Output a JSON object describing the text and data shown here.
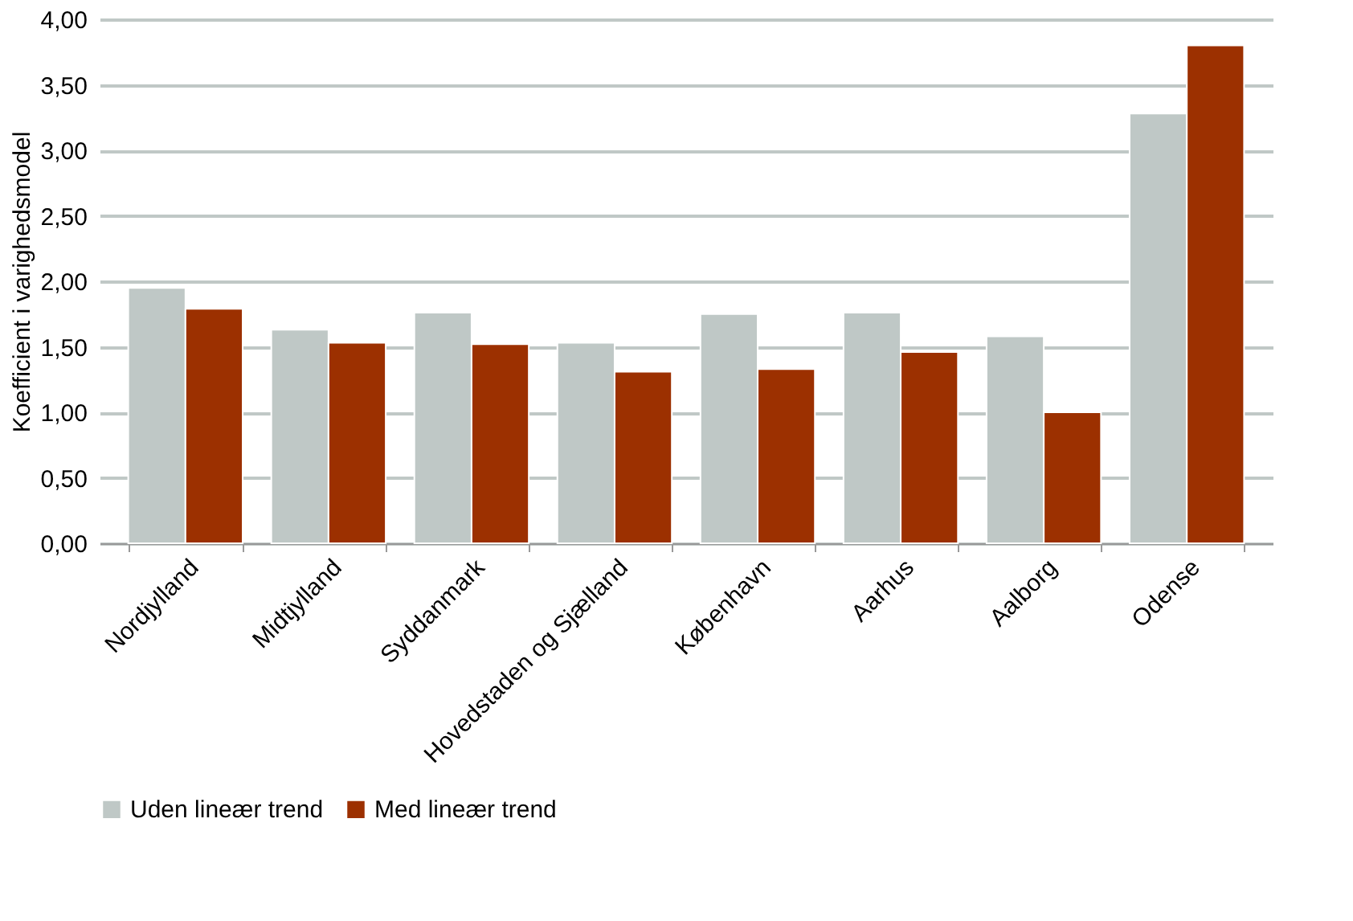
{
  "chart_data": {
    "type": "bar",
    "ylabel": "Koefficient i varighedsmodel",
    "categories": [
      "Nordjylland",
      "Midtjylland",
      "Syddanmark",
      "Hovedstaden og Sjælland",
      "København",
      "Aarhus",
      "Aalborg",
      "Odense"
    ],
    "series": [
      {
        "name": "Uden lineær trend",
        "color": "#bfc8c6",
        "values": [
          1.95,
          1.63,
          1.76,
          1.53,
          1.75,
          1.76,
          1.58,
          3.28
        ]
      },
      {
        "name": "Med lineær trend",
        "color": "#9c3000",
        "values": [
          1.79,
          1.53,
          1.52,
          1.31,
          1.33,
          1.46,
          1.0,
          3.8
        ]
      }
    ],
    "ylim": [
      0,
      4
    ],
    "yticks": [
      {
        "value": 0,
        "label": "0,00"
      },
      {
        "value": 0.5,
        "label": "0,50"
      },
      {
        "value": 1,
        "label": "1,00"
      },
      {
        "value": 1.5,
        "label": "1,50"
      },
      {
        "value": 2,
        "label": "2,00"
      },
      {
        "value": 2.5,
        "label": "2,50"
      },
      {
        "value": 3,
        "label": "3,00"
      },
      {
        "value": 3.5,
        "label": "3,50"
      },
      {
        "value": 4,
        "label": "4,00"
      }
    ],
    "grid": "y",
    "legend": "bottom"
  }
}
